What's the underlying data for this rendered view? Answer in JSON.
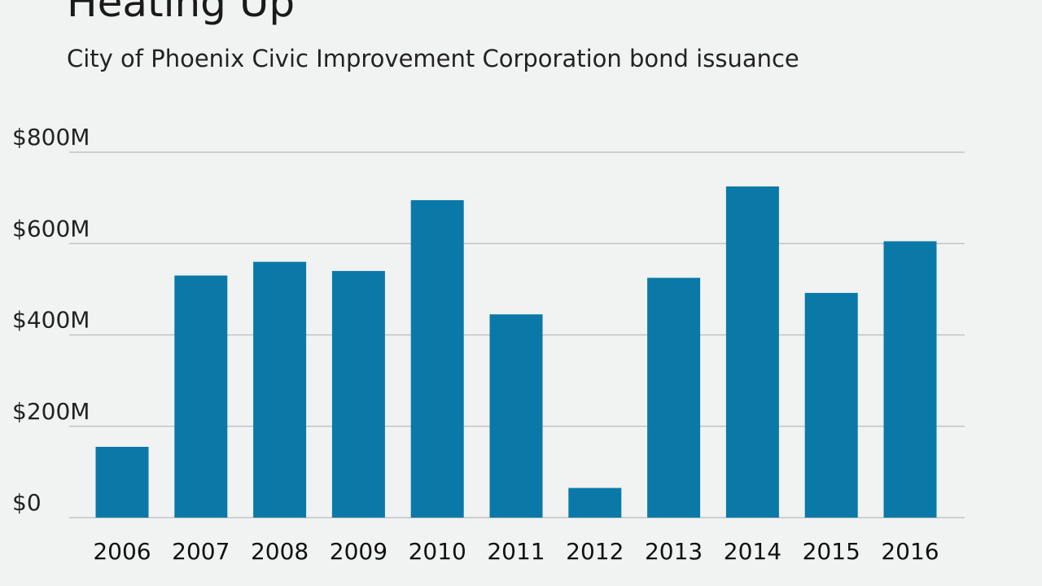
{
  "chart_data": {
    "type": "bar",
    "title": "Heating Up",
    "subtitle": "City of Phoenix Civic Improvement Corporation bond issuance",
    "xlabel": "",
    "ylabel": "",
    "categories": [
      "2006",
      "2007",
      "2008",
      "2009",
      "2010",
      "2011",
      "2012",
      "2013",
      "2014",
      "2015",
      "2016"
    ],
    "values": [
      155,
      530,
      560,
      540,
      695,
      445,
      65,
      525,
      725,
      492,
      605
    ],
    "unit": "$M",
    "ylim": [
      0,
      800
    ],
    "yticks": [
      {
        "value": 0,
        "label": "$0"
      },
      {
        "value": 200,
        "label": "$200M"
      },
      {
        "value": 400,
        "label": "$400M"
      },
      {
        "value": 600,
        "label": "$600M"
      },
      {
        "value": 800,
        "label": "$800M"
      }
    ],
    "bar_color": "#0a79a8",
    "grid": true,
    "legend": "none"
  }
}
